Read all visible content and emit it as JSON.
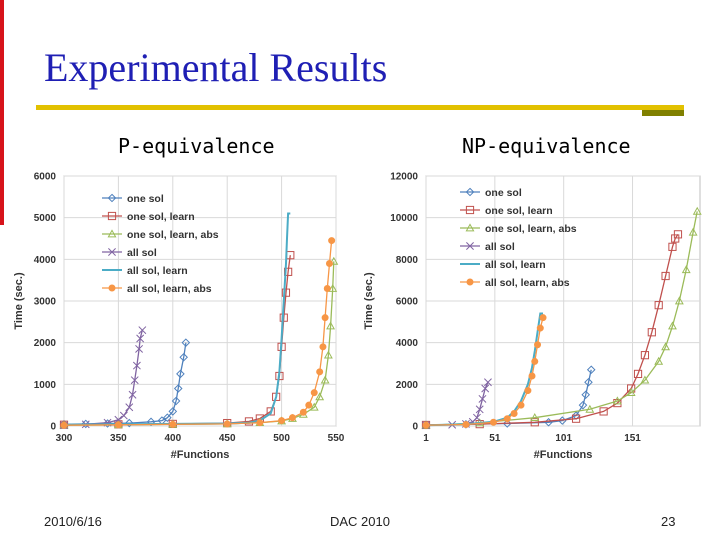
{
  "slide": {
    "title": "Experimental Results",
    "date": "2010/6/16",
    "conference": "DAC 2010",
    "page": "23"
  },
  "colors": {
    "title": "#1f1fb4",
    "rule": "#e2c100",
    "accent": "#808000",
    "left_bar": "#d7131a"
  },
  "chart_data": [
    {
      "type": "line",
      "subtitle": "P-equivalence",
      "xlabel": "#Functions",
      "ylabel": "Time (sec.)",
      "xlim": [
        300,
        550
      ],
      "ylim": [
        0,
        6000
      ],
      "xticks": [
        "300",
        "350",
        "400",
        "450",
        "500",
        "550"
      ],
      "yticks": [
        "0",
        "1000",
        "2000",
        "3000",
        "4000",
        "5000",
        "6000"
      ],
      "grid": true,
      "legend_position": "top-left",
      "series": [
        {
          "name": "one sol",
          "color": "#4f81bd",
          "marker": "diamond",
          "x": [
            300,
            320,
            340,
            360,
            380,
            390,
            395,
            400,
            403,
            405,
            407,
            410,
            412
          ],
          "y": [
            40,
            50,
            60,
            70,
            100,
            130,
            200,
            350,
            600,
            900,
            1250,
            1650,
            2000
          ]
        },
        {
          "name": "one sol, learn",
          "color": "#c0504d",
          "marker": "square",
          "x": [
            300,
            350,
            400,
            450,
            470,
            480,
            490,
            495,
            498,
            500,
            502,
            504,
            506,
            508
          ],
          "y": [
            30,
            40,
            50,
            70,
            110,
            180,
            350,
            700,
            1200,
            1900,
            2600,
            3200,
            3700,
            4100
          ]
        },
        {
          "name": "one sol, learn, abs",
          "color": "#9bbb59",
          "marker": "triangle",
          "x": [
            300,
            350,
            400,
            450,
            480,
            500,
            510,
            520,
            530,
            535,
            540,
            543,
            545,
            547,
            548
          ],
          "y": [
            20,
            30,
            40,
            50,
            80,
            120,
            180,
            280,
            450,
            700,
            1100,
            1700,
            2400,
            3300,
            3950
          ]
        },
        {
          "name": "all sol",
          "color": "#8064a2",
          "marker": "x",
          "x": [
            300,
            320,
            340,
            350,
            355,
            360,
            363,
            365,
            367,
            369,
            370,
            372
          ],
          "y": [
            20,
            40,
            80,
            150,
            250,
            450,
            750,
            1100,
            1450,
            1850,
            2100,
            2300
          ]
        },
        {
          "name": "all sol, learn",
          "color": "#4bacc6",
          "marker": "none",
          "x": [
            300,
            350,
            400,
            450,
            470,
            480,
            490,
            495,
            498,
            500,
            502,
            504,
            505,
            506,
            508
          ],
          "y": [
            30,
            40,
            50,
            60,
            80,
            130,
            300,
            700,
            1300,
            2100,
            3000,
            3900,
            4500,
            5100,
            5100
          ]
        },
        {
          "name": "all sol, learn, abs",
          "color": "#f79646",
          "marker": "circle",
          "x": [
            300,
            350,
            400,
            450,
            480,
            500,
            510,
            520,
            525,
            530,
            535,
            538,
            540,
            542,
            544,
            546
          ],
          "y": [
            20,
            30,
            40,
            50,
            80,
            130,
            200,
            330,
            500,
            800,
            1300,
            1900,
            2600,
            3300,
            3900,
            4450
          ]
        }
      ]
    },
    {
      "type": "line",
      "subtitle": "NP-equivalence",
      "xlabel": "#Functions",
      "ylabel": "Time (sec.)",
      "xlim": [
        1,
        200
      ],
      "ylim": [
        0,
        12000
      ],
      "xticks": [
        "1",
        "51",
        "101",
        "151"
      ],
      "yticks": [
        "0",
        "2000",
        "4000",
        "6000",
        "8000",
        "10000",
        "12000"
      ],
      "grid": true,
      "legend_position": "top-left",
      "series": [
        {
          "name": "one sol",
          "color": "#4f81bd",
          "marker": "diamond",
          "x": [
            1,
            30,
            60,
            90,
            100,
            110,
            115,
            117,
            119,
            121
          ],
          "y": [
            50,
            80,
            120,
            180,
            260,
            500,
            1000,
            1500,
            2100,
            2700
          ]
        },
        {
          "name": "one sol, learn",
          "color": "#c0504d",
          "marker": "square",
          "x": [
            1,
            40,
            80,
            110,
            130,
            140,
            150,
            155,
            160,
            165,
            170,
            175,
            180,
            182,
            184
          ],
          "y": [
            50,
            90,
            180,
            350,
            700,
            1100,
            1800,
            2500,
            3400,
            4500,
            5800,
            7200,
            8600,
            9000,
            9200
          ]
        },
        {
          "name": "one sol, learn, abs",
          "color": "#9bbb59",
          "marker": "triangle",
          "x": [
            1,
            40,
            80,
            120,
            140,
            150,
            160,
            170,
            175,
            180,
            185,
            190,
            195,
            198
          ],
          "y": [
            30,
            150,
            400,
            800,
            1200,
            1600,
            2200,
            3100,
            3800,
            4800,
            6000,
            7500,
            9300,
            10300
          ]
        },
        {
          "name": "all sol",
          "color": "#8064a2",
          "marker": "x",
          "x": [
            1,
            20,
            30,
            35,
            38,
            40,
            42,
            44,
            46
          ],
          "y": [
            40,
            60,
            100,
            200,
            400,
            800,
            1300,
            1800,
            2100
          ]
        },
        {
          "name": "all sol, learn",
          "color": "#4bacc6",
          "marker": "none",
          "x": [
            1,
            30,
            50,
            60,
            65,
            70,
            75,
            78,
            80,
            82,
            84,
            86
          ],
          "y": [
            40,
            80,
            200,
            400,
            700,
            1200,
            2000,
            2800,
            3600,
            4500,
            5400,
            5400
          ]
        },
        {
          "name": "all sol, learn, abs",
          "color": "#f79646",
          "marker": "circle",
          "x": [
            1,
            30,
            50,
            60,
            65,
            70,
            75,
            78,
            80,
            82,
            84,
            86
          ],
          "y": [
            40,
            70,
            180,
            350,
            600,
            1000,
            1700,
            2400,
            3100,
            3900,
            4700,
            5200
          ]
        }
      ]
    }
  ]
}
